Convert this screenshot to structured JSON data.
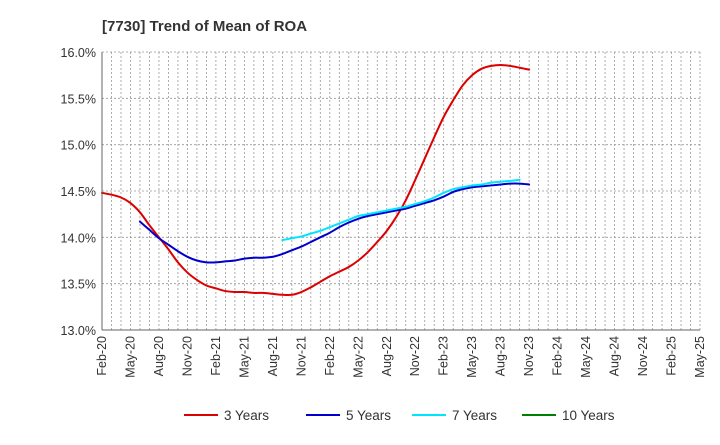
{
  "chart_data": {
    "type": "line",
    "title": "[7730]  Trend of Mean of ROA",
    "xlabel": "",
    "ylabel": "",
    "ylim": [
      13.0,
      16.0
    ],
    "yticks": [
      13.0,
      13.5,
      14.0,
      14.5,
      15.0,
      15.5,
      16.0
    ],
    "ytick_labels": [
      "13.0%",
      "13.5%",
      "14.0%",
      "14.5%",
      "15.0%",
      "15.5%",
      "16.0%"
    ],
    "xtick_labels": [
      "Feb-20",
      "May-20",
      "Aug-20",
      "Nov-20",
      "Feb-21",
      "May-21",
      "Aug-21",
      "Nov-21",
      "Feb-22",
      "May-22",
      "Aug-22",
      "Nov-22",
      "Feb-23",
      "May-23",
      "Aug-23",
      "Nov-23",
      "Feb-24",
      "May-24",
      "Aug-24",
      "Nov-24",
      "Feb-25",
      "May-25"
    ],
    "grid": true,
    "legend_position": "bottom",
    "series": [
      {
        "name": "3 Years",
        "color": "#dd0000",
        "start_index": 0,
        "values": [
          14.48,
          14.46,
          14.43,
          14.37,
          14.27,
          14.13,
          14.0,
          13.87,
          13.73,
          13.62,
          13.54,
          13.48,
          13.45,
          13.42,
          13.41,
          13.41,
          13.4,
          13.4,
          13.39,
          13.38,
          13.38,
          13.41,
          13.46,
          13.52,
          13.58,
          13.63,
          13.68,
          13.75,
          13.84,
          13.95,
          14.07,
          14.22,
          14.4,
          14.62,
          14.85,
          15.08,
          15.3,
          15.48,
          15.64,
          15.75,
          15.82,
          15.85,
          15.86,
          15.85,
          15.83,
          15.81
        ]
      },
      {
        "name": "5 Years",
        "color": "#0000cc",
        "start_index": 4,
        "values": [
          14.17,
          14.08,
          13.99,
          13.92,
          13.85,
          13.79,
          13.75,
          13.73,
          13.73,
          13.74,
          13.75,
          13.77,
          13.78,
          13.78,
          13.79,
          13.82,
          13.86,
          13.9,
          13.95,
          14.0,
          14.05,
          14.11,
          14.16,
          14.2,
          14.23,
          14.25,
          14.27,
          14.29,
          14.31,
          14.34,
          14.37,
          14.4,
          14.44,
          14.49,
          14.52,
          14.54,
          14.55,
          14.56,
          14.57,
          14.58,
          14.58,
          14.57
        ]
      },
      {
        "name": "7 Years",
        "color": "#00e5ff",
        "start_index": 19,
        "values": [
          13.97,
          13.99,
          14.01,
          14.04,
          14.07,
          14.11,
          14.15,
          14.19,
          14.23,
          14.25,
          14.27,
          14.29,
          14.31,
          14.33,
          14.36,
          14.39,
          14.43,
          14.48,
          14.52,
          14.54,
          14.56,
          14.57,
          14.59,
          14.6,
          14.61,
          14.62
        ]
      },
      {
        "name": "10 Years",
        "color": "#008000",
        "start_index": 0,
        "values": []
      }
    ]
  }
}
